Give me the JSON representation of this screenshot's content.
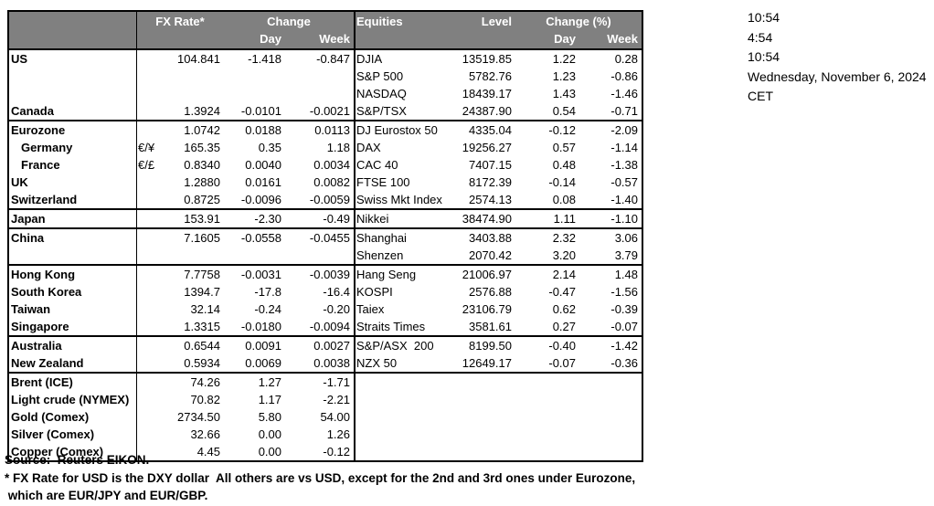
{
  "colors": {
    "header_bg": "#808080",
    "header_text": "#ffffff",
    "border": "#000000"
  },
  "table": {
    "fx_header": {
      "rate": "FX Rate*",
      "change": "Change",
      "day": "Day",
      "week": "Week"
    },
    "eq_header": {
      "name": "Equities",
      "level": "Level",
      "change_pct": "Change (%)",
      "day": "Day",
      "week": "Week"
    },
    "rows": [
      {
        "label": "US",
        "rate": "104.841",
        "day": "-1.418",
        "week": "-0.847",
        "eq": "DJIA",
        "level": "13519.85",
        "eqday": "1.22",
        "eqweek": "0.28"
      },
      {
        "eq": "S&P 500",
        "level": "5782.76",
        "eqday": "1.23",
        "eqweek": "-0.86"
      },
      {
        "eq": "NASDAQ",
        "level": "18439.17",
        "eqday": "1.43",
        "eqweek": "-1.46"
      },
      {
        "label": "Canada",
        "rate": "1.3924",
        "day": "-0.0101",
        "week": "-0.0021",
        "eq": "S&P/TSX",
        "level": "24387.90",
        "eqday": "0.54",
        "eqweek": "-0.71",
        "group_end": true
      },
      {
        "label": "Eurozone",
        "rate": "1.0742",
        "day": "0.0188",
        "week": "0.0113",
        "eq": "DJ Eurostox 50",
        "level": "4335.04",
        "eqday": "-0.12",
        "eqweek": "-2.09"
      },
      {
        "label": "Germany",
        "indent": true,
        "pair": "€/¥",
        "rate": "165.35",
        "day": "0.35",
        "week": "1.18",
        "eq": "DAX",
        "level": "19256.27",
        "eqday": "0.57",
        "eqweek": "-1.14"
      },
      {
        "label": "France",
        "indent": true,
        "pair": "€/£",
        "rate": "0.8340",
        "day": "0.0040",
        "week": "0.0034",
        "eq": "CAC 40",
        "level": "7407.15",
        "eqday": "0.48",
        "eqweek": "-1.38"
      },
      {
        "label": "UK",
        "rate": "1.2880",
        "day": "0.0161",
        "week": "0.0082",
        "eq": "FTSE 100",
        "level": "8172.39",
        "eqday": "-0.14",
        "eqweek": "-0.57"
      },
      {
        "label": "Switzerland",
        "rate": "0.8725",
        "day": "-0.0096",
        "week": "-0.0059",
        "eq": "Swiss Mkt Index",
        "level": "2574.13",
        "eqday": "0.08",
        "eqweek": "-1.40",
        "group_end": true
      },
      {
        "label": "Japan",
        "rate": "153.91",
        "day": "-2.30",
        "week": "-0.49",
        "eq": "Nikkei",
        "level": "38474.90",
        "eqday": "1.11",
        "eqweek": "-1.10",
        "group_end": true
      },
      {
        "label": "China",
        "rate": "7.1605",
        "day": "-0.0558",
        "week": "-0.0455",
        "eq": "Shanghai",
        "level": "3403.88",
        "eqday": "2.32",
        "eqweek": "3.06"
      },
      {
        "eq": "Shenzen",
        "level": "2070.42",
        "eqday": "3.20",
        "eqweek": "3.79",
        "group_end": true
      },
      {
        "label": "Hong Kong",
        "rate": "7.7758",
        "day": "-0.0031",
        "week": "-0.0039",
        "eq": "Hang Seng",
        "level": "21006.97",
        "eqday": "2.14",
        "eqweek": "1.48"
      },
      {
        "label": "South Korea",
        "rate": "1394.7",
        "day": "-17.8",
        "week": "-16.4",
        "eq": "KOSPI",
        "level": "2576.88",
        "eqday": "-0.47",
        "eqweek": "-1.56"
      },
      {
        "label": "Taiwan",
        "rate": "32.14",
        "day": "-0.24",
        "week": "-0.20",
        "eq": "Taiex",
        "level": "23106.79",
        "eqday": "0.62",
        "eqweek": "-0.39"
      },
      {
        "label": "Singapore",
        "rate": "1.3315",
        "day": "-0.0180",
        "week": "-0.0094",
        "eq": "Straits Times",
        "level": "3581.61",
        "eqday": "0.27",
        "eqweek": "-0.07",
        "group_end": true
      },
      {
        "label": "Australia",
        "rate": "0.6544",
        "day": "0.0091",
        "week": "0.0027",
        "eq": "S&P/ASX  200",
        "level": "8199.50",
        "eqday": "-0.40",
        "eqweek": "-1.42"
      },
      {
        "label": "New Zealand",
        "rate": "0.5934",
        "day": "0.0069",
        "week": "0.0038",
        "eq": "NZX 50",
        "level": "12649.17",
        "eqday": "-0.07",
        "eqweek": "-0.36",
        "group_end": true
      },
      {
        "label": "Brent (ICE)",
        "rate": "74.26",
        "day": "1.27",
        "week": "-1.71"
      },
      {
        "label": "Light crude (NYMEX)",
        "rate": "70.82",
        "day": "1.17",
        "week": "-2.21"
      },
      {
        "label": "Gold (Comex)",
        "rate": "2734.50",
        "day": "5.80",
        "week": "54.00"
      },
      {
        "label": "Silver (Comex)",
        "rate": "32.66",
        "day": "0.00",
        "week": "1.26"
      },
      {
        "label": "Copper (Comex)",
        "rate": "4.45",
        "day": "0.00",
        "week": "-0.12"
      }
    ]
  },
  "datetime": {
    "lines": [
      "10:54",
      "4:54",
      "10:54",
      "Wednesday, November 6, 2024",
      "CET"
    ]
  },
  "footer": {
    "lines": [
      "Source:  Reuters EIKON.",
      "* FX Rate for USD is the DXY dollar  All others are vs USD, except for the 2nd and 3rd ones under Eurozone,",
      " which are EUR/JPY and EUR/GBP."
    ]
  }
}
